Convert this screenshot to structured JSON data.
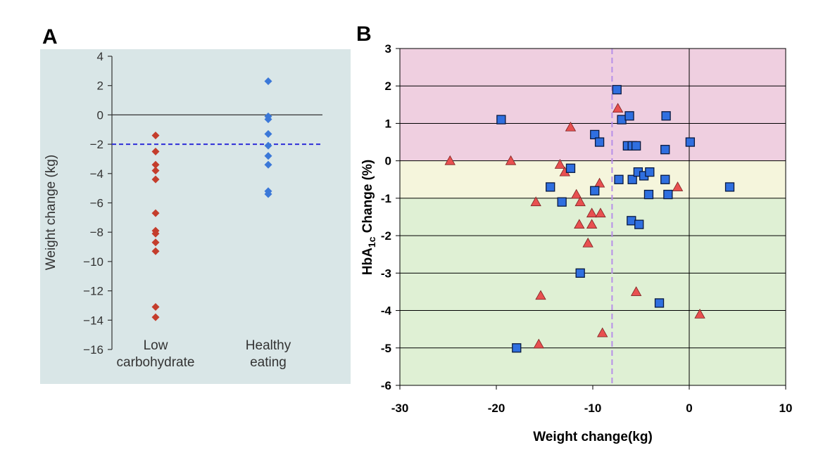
{
  "panels": {
    "a_letter": "A",
    "b_letter": "B"
  },
  "colors": {
    "panel_a_background": "#d9e6e7",
    "low_carb_marker": "#c43d2c",
    "healthy_eating_marker": "#3b78d8",
    "threshold_line": "#2e2ed8",
    "panel_b_pink_band": "#efcfe0",
    "panel_b_yellow_band": "#f5f5dc",
    "panel_b_green_band": "#dff0d4",
    "panel_b_dashed_line": "#b78fe8",
    "triangle_marker": "#e85050",
    "square_marker": "#2f6fe0"
  },
  "chart_data": [
    {
      "type": "scatter",
      "panel": "A",
      "ylabel": "Weight change (kg)",
      "xlabel": "",
      "categories": [
        "Low\ncarbohydrate",
        "Healthy\neating"
      ],
      "category_lines": [
        [
          "Low",
          "carbohydrate"
        ],
        [
          "Healthy",
          "eating"
        ]
      ],
      "ylim": [
        -16,
        4
      ],
      "yticks": [
        4,
        2,
        0,
        -2,
        -4,
        -6,
        -8,
        -10,
        -12,
        -14,
        -16
      ],
      "reference_line": 0,
      "threshold_line": -2,
      "grid": false,
      "series": [
        {
          "category": "Low\ncarbohydrate",
          "values": [
            -1.4,
            -2.5,
            -3.4,
            -3.8,
            -4.4,
            -6.7,
            -7.9,
            -8.1,
            -8.7,
            -9.3,
            -13.1,
            -13.8
          ]
        },
        {
          "category": "Healthy\neating",
          "values": [
            2.3,
            -0.1,
            -0.3,
            -1.3,
            -2.1,
            -2.8,
            -3.4,
            -5.2,
            -5.4
          ]
        }
      ]
    },
    {
      "type": "scatter",
      "panel": "B",
      "xlabel": "Weight change(kg)",
      "ylabel_parts": [
        "HbA",
        "1c",
        " Change (%)"
      ],
      "xlim": [
        -30,
        10
      ],
      "ylim": [
        -6,
        3
      ],
      "xticks": [
        -30,
        -20,
        -10,
        0,
        10
      ],
      "yticks": [
        3,
        2,
        1,
        0,
        -1,
        -2,
        -3,
        -4,
        -5,
        -6
      ],
      "grid": true,
      "bands": [
        {
          "from": 0,
          "to": 3,
          "color": "#efcfe0"
        },
        {
          "from": -1,
          "to": 0,
          "color": "#f5f5dc"
        },
        {
          "from": -6,
          "to": -1,
          "color": "#dff0d4"
        }
      ],
      "vertical_reference": 0,
      "dashed_vertical": -8,
      "series": [
        {
          "marker": "triangle",
          "points": [
            [
              -24.8,
              0.0
            ],
            [
              -18.5,
              0.0
            ],
            [
              -12.3,
              0.9
            ],
            [
              -7.4,
              1.4
            ],
            [
              -13.4,
              -0.1
            ],
            [
              -12.9,
              -0.3
            ],
            [
              -11.7,
              -0.9
            ],
            [
              -11.3,
              -1.1
            ],
            [
              -15.9,
              -1.1
            ],
            [
              -9.3,
              -0.6
            ],
            [
              -10.1,
              -1.4
            ],
            [
              -9.2,
              -1.4
            ],
            [
              -11.4,
              -1.7
            ],
            [
              -10.1,
              -1.7
            ],
            [
              -10.5,
              -2.2
            ],
            [
              -15.4,
              -3.6
            ],
            [
              -5.5,
              -3.5
            ],
            [
              -15.6,
              -4.9
            ],
            [
              -9.0,
              -4.6
            ],
            [
              -1.2,
              -0.7
            ],
            [
              1.1,
              -4.1
            ]
          ]
        },
        {
          "marker": "square",
          "points": [
            [
              -19.5,
              1.1
            ],
            [
              -7.5,
              1.9
            ],
            [
              -9.8,
              0.7
            ],
            [
              -9.3,
              0.5
            ],
            [
              -7.0,
              1.1
            ],
            [
              -6.2,
              1.2
            ],
            [
              -2.4,
              1.2
            ],
            [
              -6.4,
              0.4
            ],
            [
              -5.9,
              0.4
            ],
            [
              -5.5,
              0.4
            ],
            [
              -2.5,
              0.3
            ],
            [
              0.1,
              0.5
            ],
            [
              -12.3,
              -0.2
            ],
            [
              -14.4,
              -0.7
            ],
            [
              -9.8,
              -0.8
            ],
            [
              -7.3,
              -0.5
            ],
            [
              -5.9,
              -0.5
            ],
            [
              -5.3,
              -0.3
            ],
            [
              -4.7,
              -0.4
            ],
            [
              -4.1,
              -0.3
            ],
            [
              -2.5,
              -0.5
            ],
            [
              -4.2,
              -0.9
            ],
            [
              -2.2,
              -0.9
            ],
            [
              -13.2,
              -1.1
            ],
            [
              -6.0,
              -1.6
            ],
            [
              -5.2,
              -1.7
            ],
            [
              -11.3,
              -3.0
            ],
            [
              -3.1,
              -3.8
            ],
            [
              -17.9,
              -5.0
            ],
            [
              4.2,
              -0.7
            ]
          ]
        }
      ]
    }
  ]
}
